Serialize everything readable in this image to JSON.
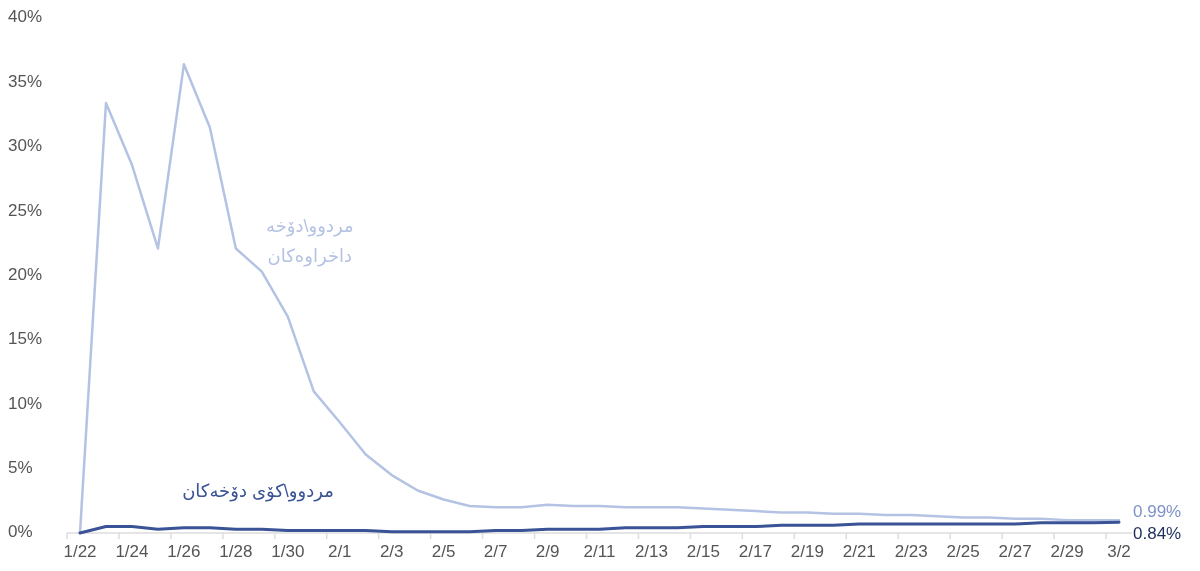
{
  "chart_data": {
    "type": "line",
    "categories": [
      "1/22",
      null,
      "1/24",
      null,
      "1/26",
      null,
      "1/28",
      null,
      "1/30",
      null,
      "2/1",
      null,
      "2/3",
      null,
      "2/5",
      null,
      "2/7",
      null,
      "2/9",
      null,
      "2/11",
      null,
      "2/13",
      null,
      "2/15",
      null,
      "2/17",
      null,
      "2/19",
      null,
      "2/21",
      null,
      "2/23",
      null,
      "2/25",
      null,
      "2/27",
      null,
      "2/29",
      null,
      "3/2"
    ],
    "ylim": [
      0,
      40
    ],
    "yticks": [
      {
        "value": 0,
        "label": "0%"
      },
      {
        "value": 5,
        "label": "5%"
      },
      {
        "value": 10,
        "label": "10%"
      },
      {
        "value": 15,
        "label": "15%"
      },
      {
        "value": 20,
        "label": "20%"
      },
      {
        "value": 25,
        "label": "25%"
      },
      {
        "value": 30,
        "label": "30%"
      },
      {
        "value": 35,
        "label": "35%"
      },
      {
        "value": 40,
        "label": "40%"
      }
    ],
    "grid": false,
    "marker": "none",
    "line_style": "solid",
    "series": [
      {
        "name": "مردوو\\دۆخە داخراوەکان",
        "color": "#b4c3e3",
        "values": [
          0,
          33.4,
          28.6,
          22.1,
          36.4,
          31.5,
          22.1,
          20.3,
          16.8,
          11.0,
          8.6,
          6.1,
          4.5,
          3.3,
          2.6,
          2.1,
          2.0,
          2.0,
          2.2,
          2.1,
          2.1,
          2.0,
          2.0,
          2.0,
          1.9,
          1.8,
          1.7,
          1.6,
          1.6,
          1.5,
          1.5,
          1.4,
          1.4,
          1.3,
          1.2,
          1.2,
          1.1,
          1.1,
          1.0,
          1.0,
          0.99
        ],
        "value_labels": [
          null,
          null,
          null,
          null,
          null,
          null,
          null,
          null,
          null,
          null,
          null,
          null,
          null,
          null,
          null,
          null,
          null,
          null,
          null,
          null,
          null,
          null,
          null,
          null,
          null,
          null,
          null,
          null,
          null,
          null,
          null,
          null,
          null,
          null,
          null,
          null,
          null,
          null,
          null,
          null,
          "0.99%"
        ]
      },
      {
        "name": "مردوو\\کۆی دۆخەکان",
        "color": "#3a5396",
        "values": [
          0,
          0.5,
          0.5,
          0.3,
          0.4,
          0.4,
          0.3,
          0.3,
          0.2,
          0.2,
          0.2,
          0.2,
          0.1,
          0.1,
          0.1,
          0.1,
          0.2,
          0.2,
          0.3,
          0.3,
          0.3,
          0.4,
          0.4,
          0.4,
          0.5,
          0.5,
          0.5,
          0.6,
          0.6,
          0.6,
          0.7,
          0.7,
          0.7,
          0.7,
          0.7,
          0.7,
          0.7,
          0.8,
          0.8,
          0.8,
          0.84
        ],
        "value_labels": [
          null,
          null,
          null,
          null,
          null,
          null,
          null,
          null,
          null,
          null,
          null,
          null,
          null,
          null,
          null,
          null,
          null,
          null,
          null,
          null,
          null,
          null,
          null,
          null,
          null,
          null,
          null,
          null,
          null,
          null,
          null,
          null,
          null,
          null,
          null,
          null,
          null,
          null,
          null,
          null,
          "0.84%"
        ]
      }
    ]
  }
}
